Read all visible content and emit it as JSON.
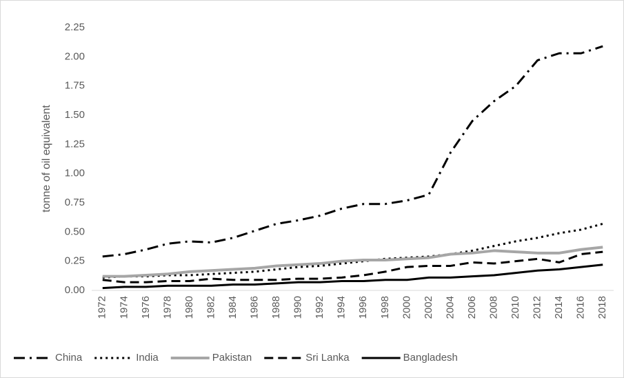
{
  "chart_data": {
    "type": "line",
    "y_label": "tonne of oil equivalent",
    "categories": [
      "1972",
      "1974",
      "1976",
      "1978",
      "1980",
      "1982",
      "1984",
      "1986",
      "1988",
      "1990",
      "1992",
      "1994",
      "1996",
      "1998",
      "2000",
      "2002",
      "2004",
      "2006",
      "2008",
      "2010",
      "2012",
      "2014",
      "2016",
      "2018"
    ],
    "series": [
      {
        "name": "China",
        "color": "#000000",
        "dash": "dash-dot",
        "values": [
          0.29,
          0.31,
          0.35,
          0.4,
          0.42,
          0.41,
          0.45,
          0.51,
          0.57,
          0.6,
          0.64,
          0.7,
          0.74,
          0.74,
          0.77,
          0.82,
          1.18,
          1.45,
          1.62,
          1.75,
          1.97,
          2.03,
          2.03,
          2.09
        ]
      },
      {
        "name": "India",
        "color": "#000000",
        "dash": "dot",
        "values": [
          0.11,
          0.12,
          0.12,
          0.13,
          0.13,
          0.14,
          0.15,
          0.16,
          0.18,
          0.2,
          0.21,
          0.23,
          0.25,
          0.27,
          0.28,
          0.29,
          0.31,
          0.34,
          0.38,
          0.42,
          0.45,
          0.49,
          0.52,
          0.57
        ]
      },
      {
        "name": "Pakistan",
        "color": "#a6a6a6",
        "dash": "solid",
        "values": [
          0.12,
          0.12,
          0.13,
          0.14,
          0.16,
          0.17,
          0.18,
          0.19,
          0.21,
          0.22,
          0.23,
          0.25,
          0.26,
          0.26,
          0.27,
          0.28,
          0.31,
          0.32,
          0.34,
          0.33,
          0.32,
          0.32,
          0.35,
          0.37
        ]
      },
      {
        "name": "Sri Lanka",
        "color": "#000000",
        "dash": "dash",
        "values": [
          0.09,
          0.07,
          0.07,
          0.08,
          0.08,
          0.1,
          0.09,
          0.09,
          0.09,
          0.1,
          0.1,
          0.11,
          0.13,
          0.16,
          0.2,
          0.21,
          0.21,
          0.24,
          0.23,
          0.25,
          0.27,
          0.24,
          0.31,
          0.33
        ]
      },
      {
        "name": "Bangladesh",
        "color": "#000000",
        "dash": "solid",
        "values": [
          0.02,
          0.03,
          0.03,
          0.04,
          0.04,
          0.04,
          0.05,
          0.05,
          0.06,
          0.07,
          0.07,
          0.08,
          0.08,
          0.09,
          0.09,
          0.11,
          0.11,
          0.12,
          0.13,
          0.15,
          0.17,
          0.18,
          0.2,
          0.22
        ]
      }
    ],
    "ylim": [
      0,
      2.25
    ],
    "yticks": [
      {
        "value": 0,
        "label": "0.00"
      },
      {
        "value": 0.25,
        "label": "0.25"
      },
      {
        "value": 0.5,
        "label": "0.50"
      },
      {
        "value": 0.75,
        "label": "0.75"
      },
      {
        "value": 1,
        "label": "1.00"
      },
      {
        "value": 1.25,
        "label": "1.25"
      },
      {
        "value": 1.5,
        "label": "1.50"
      },
      {
        "value": 1.75,
        "label": "1.75"
      },
      {
        "value": 2,
        "label": "2.00"
      },
      {
        "value": 2.25,
        "label": "2.25"
      }
    ],
    "legend": "bottom"
  }
}
